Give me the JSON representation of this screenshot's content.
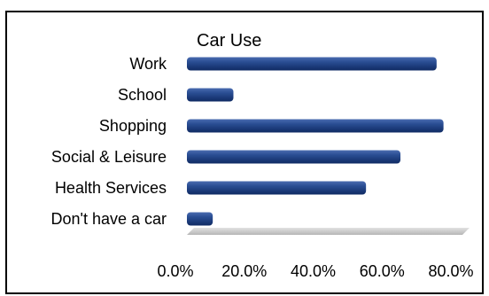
{
  "chart_data": {
    "type": "bar",
    "orientation": "horizontal",
    "title": "Car Use",
    "categories": [
      "Work",
      "School",
      "Shopping",
      "Social & Leisure",
      "Health Services",
      "Don't have a car"
    ],
    "values": [
      72.5,
      13.5,
      74.5,
      62.0,
      52.0,
      7.5
    ],
    "value_unit": "percent",
    "xlim": [
      0,
      80
    ],
    "xticks": [
      "0.0%",
      "20.0%",
      "40.0%",
      "60.0%",
      "80.0%"
    ],
    "xtick_values": [
      0,
      20,
      40,
      60,
      80
    ],
    "grid": false,
    "legend": "none",
    "bar_color": "#1F3F7F",
    "bar_highlight_color": "#4A6CB0",
    "floor_color": "#C8C8C8",
    "style": "3d-cylinder"
  }
}
